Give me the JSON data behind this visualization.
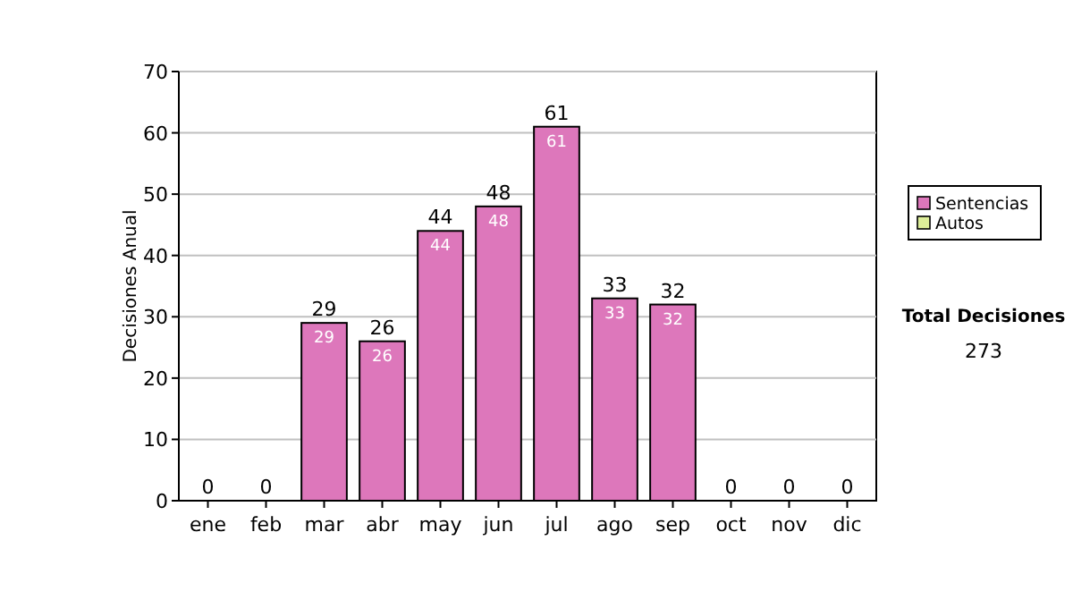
{
  "chart_data": {
    "type": "bar",
    "stacked": true,
    "ylabel": "Decisiones Anual",
    "categories": [
      "ene",
      "feb",
      "mar",
      "abr",
      "may",
      "jun",
      "jul",
      "ago",
      "sep",
      "oct",
      "nov",
      "dic"
    ],
    "series": [
      {
        "name": "Sentencias",
        "color": "#dd77bb",
        "values": [
          0,
          0,
          29,
          26,
          44,
          48,
          61,
          33,
          32,
          0,
          0,
          0
        ],
        "value_labels": [
          null,
          null,
          "29",
          "26",
          "44",
          "48",
          "61",
          "33",
          "32",
          null,
          null,
          null
        ]
      },
      {
        "name": "Autos",
        "color": "#ddee99",
        "values": [
          0,
          0,
          0,
          0,
          0,
          0,
          0,
          0,
          0,
          0,
          0,
          0
        ]
      }
    ],
    "totals": [
      "0",
      "0",
      "29",
      "26",
      "44",
      "48",
      "61",
      "33",
      "32",
      "0",
      "0",
      "0"
    ],
    "ylim": [
      0,
      70
    ],
    "yticks": [
      0,
      10,
      20,
      30,
      40,
      50,
      60,
      70
    ],
    "grid": "y",
    "legend": "right",
    "annotations": [
      "Total Decisiones",
      "273"
    ]
  }
}
